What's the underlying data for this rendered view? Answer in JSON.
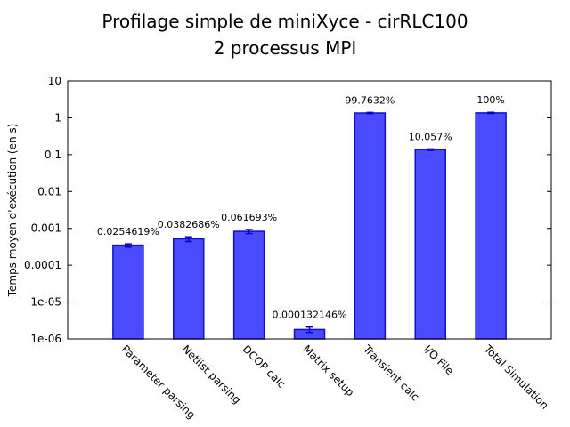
{
  "chart_data": {
    "type": "bar",
    "title": "Profilage simple de miniXyce - cirRLC100",
    "subtitle": "2 processus MPI",
    "ylabel": "Temps moyen d'exécution (en s)",
    "xlabel": "",
    "yscale": "log",
    "ylim": [
      1e-06,
      10
    ],
    "yticks": [
      "1e-06",
      "1e-05",
      "0.0001",
      "0.001",
      "0.01",
      "0.1",
      "1",
      "10"
    ],
    "grid": false,
    "legend": "none",
    "categories": [
      "Parameter parsing",
      "Netlist parsing",
      "DCOP calc",
      "Matrix setup",
      "Transient calc",
      "I/O File",
      "Total Simulation"
    ],
    "values": [
      0.00035,
      0.00052,
      0.00083,
      1.8e-06,
      1.35,
      0.137,
      1.36
    ],
    "error_low": [
      0.00031,
      0.00044,
      0.00072,
      1.5e-06,
      1.3,
      0.131,
      1.31
    ],
    "error_high": [
      0.00038,
      0.00059,
      0.00093,
      2.1e-06,
      1.4,
      0.143,
      1.41
    ],
    "data_labels": [
      "0.0254619%",
      "0.0382686%",
      "0.061693%",
      "0.000132146%",
      "99.7632%",
      "10.057%",
      "100%"
    ],
    "colors": {
      "bar_fill": "#4a4aff",
      "bar_stroke": "#1010c8",
      "error_bar": "#0000d0"
    }
  }
}
